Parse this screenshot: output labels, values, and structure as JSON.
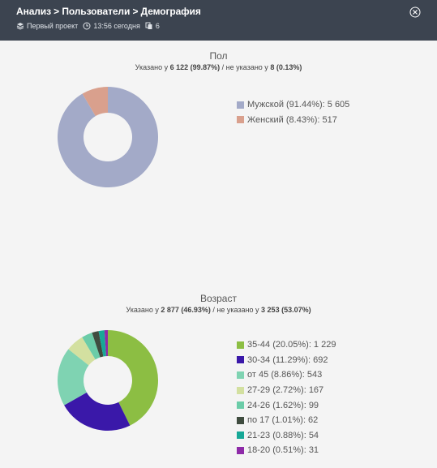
{
  "header": {
    "breadcrumb": "Анализ > Пользователи > Демография",
    "project": "Первый проект",
    "time": "13:56 сегодня",
    "count": "6"
  },
  "colors": {
    "header_bg": "#3c4450",
    "content_bg": "#f4f4f4"
  },
  "gender": {
    "title": "Пол",
    "sub_prefix": "Указано у ",
    "sub_specified": "6 122 (99.87%)",
    "sub_middle": " / не указано у ",
    "sub_unspecified": "8 (0.13%)"
  },
  "age": {
    "title": "Возраст",
    "sub_prefix": "Указано у ",
    "sub_specified": "2 877 (46.93%)",
    "sub_middle": " / не указано у ",
    "sub_unspecified": "3 253 (53.07%)"
  },
  "chart_data": [
    {
      "type": "pie",
      "title": "Пол",
      "series": [
        {
          "label": "Мужской (91.44%): 5 605",
          "value": 5605,
          "color": "#a3aac8"
        },
        {
          "label": "Женский (8.43%): 517",
          "value": 517,
          "color": "#d9a08d"
        }
      ]
    },
    {
      "type": "pie",
      "title": "Возраст",
      "series": [
        {
          "label": "35-44 (20.05%): 1 229",
          "value": 1229,
          "color": "#8cbe43"
        },
        {
          "label": "30-34 (11.29%): 692",
          "value": 692,
          "color": "#3a18a9"
        },
        {
          "label": "от 45 (8.86%): 543",
          "value": 543,
          "color": "#7fd3b2"
        },
        {
          "label": "27-29 (2.72%): 167",
          "value": 167,
          "color": "#d3e0a0"
        },
        {
          "label": "24-26 (1.62%): 99",
          "value": 99,
          "color": "#6bcca8"
        },
        {
          "label": "по 17 (1.01%): 62",
          "value": 62,
          "color": "#3f4c3f"
        },
        {
          "label": "21-23 (0.88%): 54",
          "value": 54,
          "color": "#17a897"
        },
        {
          "label": "18-20 (0.51%): 31",
          "value": 31,
          "color": "#8e2aa8"
        }
      ]
    }
  ]
}
